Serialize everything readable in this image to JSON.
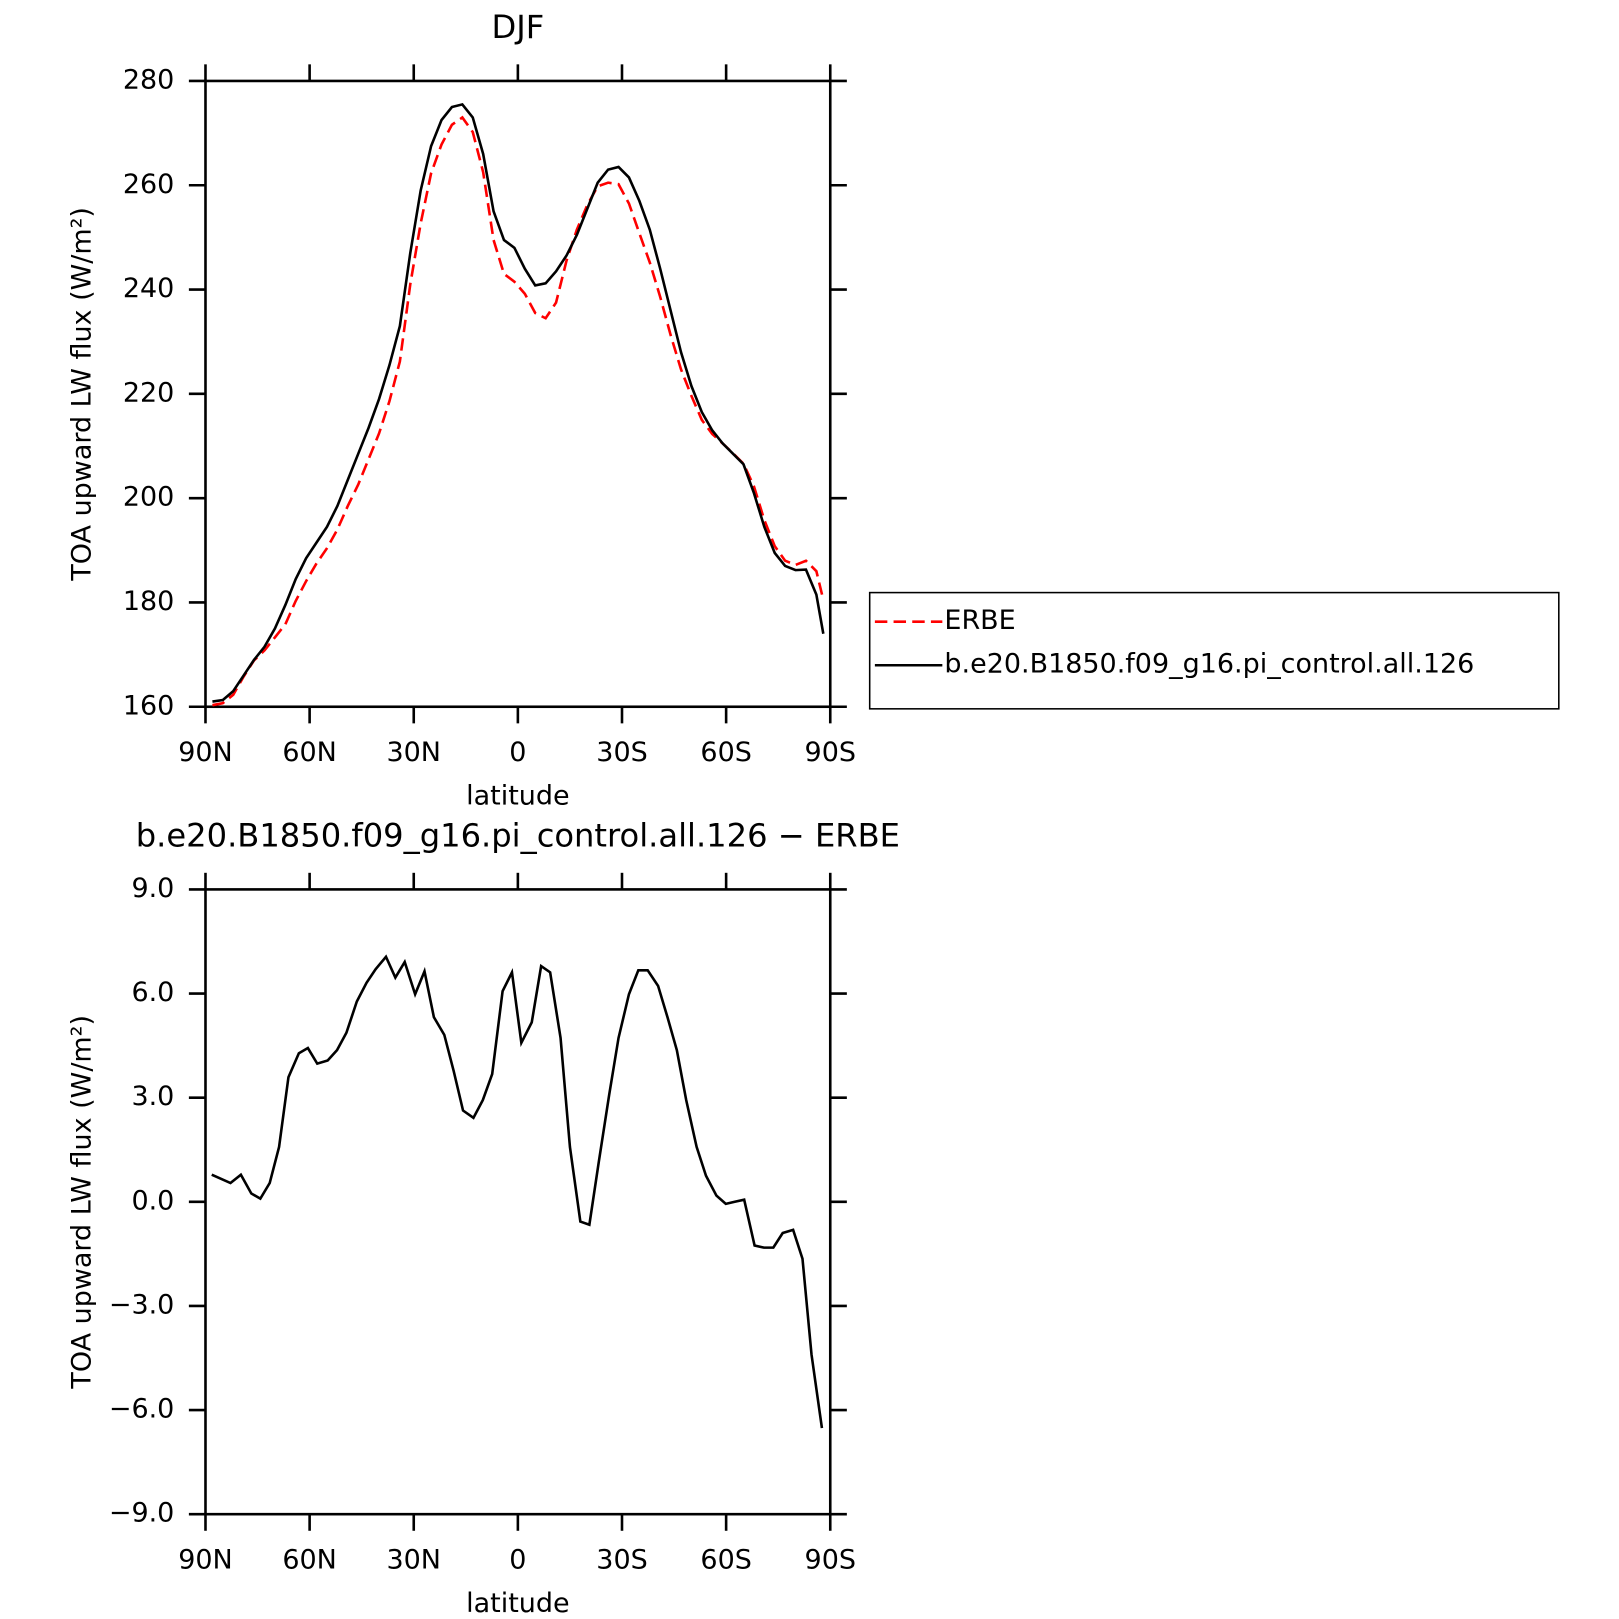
{
  "chart_data": [
    {
      "type": "line",
      "title": "DJF",
      "x_label": "latitude",
      "y_label": "TOA upward LW flux (W/m²)",
      "x": [
        88,
        85,
        82,
        79,
        76,
        73,
        70,
        67,
        64,
        61,
        58,
        55,
        52,
        49,
        46,
        43,
        40,
        37,
        34,
        31,
        28,
        25,
        22,
        19,
        16,
        13,
        10,
        7,
        4,
        1,
        -2,
        -5,
        -8,
        -11,
        -14,
        -17,
        -20,
        -23,
        -26,
        -29,
        -32,
        -35,
        -38,
        -41,
        -44,
        -47,
        -50,
        -53,
        -56,
        -59,
        -62,
        -65,
        -68,
        -71,
        -74,
        -77,
        -80,
        -83,
        -86,
        -88
      ],
      "series": [
        {
          "name": "ERBE",
          "color": "#ff0000",
          "dash": "dashed",
          "values": [
            160.3,
            160.7,
            162.3,
            165.8,
            168.9,
            170.8,
            173.3,
            175.8,
            180.3,
            184.1,
            187.5,
            190.4,
            194.0,
            198.5,
            202.6,
            207.5,
            212.4,
            218.6,
            226.2,
            241,
            252.7,
            262.3,
            267.8,
            271.6,
            273.0,
            270.2,
            262.5,
            249.5,
            243,
            241.5,
            239.2,
            235.5,
            234.5,
            237.5,
            245.5,
            251.5,
            256.2,
            259.8,
            260.5,
            260.2,
            256.5,
            250.8,
            245.2,
            238.6,
            231.3,
            224.7,
            219.6,
            215.0,
            212.3,
            210.5,
            208.6,
            206.6,
            202.3,
            195.8,
            190.8,
            188,
            187.2,
            188.0,
            186.0,
            180.5
          ]
        },
        {
          "name": "b.e20.B1850.f09_g16.pi_control.all.126",
          "color": "#000000",
          "dash": "solid",
          "values": [
            161.0,
            161.3,
            163.0,
            166.0,
            169.0,
            171.5,
            175.0,
            179.5,
            184.5,
            188.5,
            191.5,
            194.5,
            198.5,
            203.5,
            208.5,
            213.5,
            219.0,
            225.5,
            233.0,
            247,
            259,
            267.5,
            272.5,
            275.0,
            275.5,
            273,
            266,
            255,
            249.5,
            248,
            244,
            240.8,
            241.2,
            243.5,
            246.5,
            250.5,
            255.5,
            260.5,
            263.0,
            263.5,
            261.5,
            257,
            251.5,
            244,
            236,
            228,
            221.5,
            216.5,
            213,
            210.5,
            208.5,
            206.5,
            201,
            194.5,
            189.5,
            187,
            186.2,
            186.3,
            181.5,
            174
          ]
        }
      ],
      "xlim": [
        90,
        -90
      ],
      "xticks": [
        {
          "value": 90,
          "label": "90N"
        },
        {
          "value": 60,
          "label": "60N"
        },
        {
          "value": 30,
          "label": "30N"
        },
        0,
        {
          "value": -30,
          "label": "30S"
        },
        {
          "value": -60,
          "label": "60S"
        },
        {
          "value": -90,
          "label": "90S"
        }
      ],
      "ylim": [
        160,
        280
      ],
      "yticks": [
        160,
        180,
        200,
        220,
        240,
        260,
        280
      ],
      "legend": "right"
    },
    {
      "type": "line",
      "title": "b.e20.B1850.f09_g16.pi_control.all.126 − ERBE",
      "x_label": "latitude",
      "y_label": "TOA upward LW flux (W/m²)",
      "x": [
        88.2,
        82.8,
        79.8,
        76.8,
        74.2,
        71.5,
        68.8,
        66.1,
        63.1,
        60.5,
        57.8,
        54.8,
        52.1,
        49.4,
        46.4,
        43.6,
        41.0,
        38.0,
        35.3,
        32.6,
        29.6,
        26.9,
        24.2,
        21.2,
        18.5,
        15.8,
        12.8,
        10.1,
        7.4,
        4.4,
        1.7,
        -1.0,
        -4.0,
        -6.7,
        -9.3,
        -12.3,
        -15.0,
        -18.0,
        -20.6,
        -23.3,
        -26.3,
        -29.0,
        -32.0,
        -34.7,
        -37.4,
        -40.4,
        -43.1,
        -45.8,
        -48.5,
        -51.5,
        -54.2,
        -57.2,
        -59.9,
        -62.5,
        -65.2,
        -68.2,
        -70.9,
        -73.6,
        -76.3,
        -79.3,
        -82.0,
        -84.6,
        -87.6
      ],
      "values": [
        0.78,
        0.54,
        0.78,
        0.24,
        0.09,
        0.54,
        1.58,
        3.59,
        4.28,
        4.43,
        3.98,
        4.07,
        4.37,
        4.87,
        5.77,
        6.31,
        6.7,
        7.06,
        6.46,
        6.91,
        5.98,
        6.64,
        5.32,
        4.81,
        3.77,
        2.63,
        2.42,
        2.93,
        3.68,
        6.07,
        6.61,
        4.58,
        5.17,
        6.79,
        6.61,
        4.72,
        1.58,
        -0.57,
        -0.66,
        1.14,
        3.08,
        4.72,
        5.98,
        6.67,
        6.67,
        6.22,
        5.32,
        4.37,
        2.93,
        1.58,
        0.75,
        0.18,
        -0.06,
        0.0,
        0.06,
        -1.26,
        -1.32,
        -1.32,
        -0.9,
        -0.81,
        -1.64,
        -4.4,
        -6.52
      ],
      "color": "#000000",
      "xlim": [
        90,
        -90
      ],
      "xticks": [
        {
          "value": 90,
          "label": "90N"
        },
        {
          "value": 60,
          "label": "60N"
        },
        {
          "value": 30,
          "label": "30N"
        },
        0,
        {
          "value": -30,
          "label": "30S"
        },
        {
          "value": -60,
          "label": "60S"
        },
        {
          "value": -90,
          "label": "90S"
        }
      ],
      "ylim": [
        -9,
        9
      ],
      "yticks": [
        {
          "value": -9,
          "label": "−9.0"
        },
        {
          "value": -6,
          "label": "−6.0"
        },
        {
          "value": -3,
          "label": "−3.0"
        },
        {
          "value": 0,
          "label": "0.0"
        },
        {
          "value": 3,
          "label": "3.0"
        },
        {
          "value": 6,
          "label": "6.0"
        },
        {
          "value": 9,
          "label": "9.0"
        }
      ]
    }
  ]
}
